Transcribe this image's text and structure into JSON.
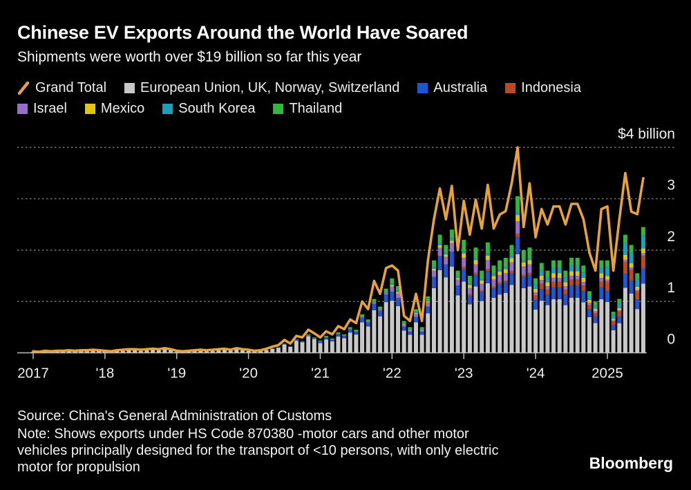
{
  "header": {
    "title": "Chinese EV Exports Around the World Have Soared",
    "subtitle": "Shipments were worth over $19 billion so far this year"
  },
  "legend": {
    "rows": [
      [
        {
          "type": "line",
          "label": "Grand Total",
          "color": "#E8A23B"
        },
        {
          "type": "swatch",
          "label": "European Union, UK, Norway, Switzerland",
          "color": "#C8C8C8"
        },
        {
          "type": "swatch",
          "label": "Australia",
          "color": "#1E57D2"
        },
        {
          "type": "swatch",
          "label": "Indonesia",
          "color": "#BC4A20"
        }
      ],
      [
        {
          "type": "swatch",
          "label": "Israel",
          "color": "#9A6CCB"
        },
        {
          "type": "swatch",
          "label": "Mexico",
          "color": "#E2C50F"
        },
        {
          "type": "swatch",
          "label": "South Korea",
          "color": "#1AA0BA"
        },
        {
          "type": "swatch",
          "label": "Thailand",
          "color": "#2FB83C"
        }
      ]
    ]
  },
  "chart_data": {
    "type": "bar",
    "overlay": "line",
    "title": "Chinese EV Exports Around the World Have Soared",
    "subtitle": "Shipments were worth over $19 billion so far this year",
    "start_month": "2017-01",
    "end_month": "2025-07",
    "months": 103,
    "y_axis": {
      "range": [
        0,
        4
      ],
      "ticks": [
        0,
        1,
        2,
        3
      ],
      "top_tick_value": 4,
      "top_tick_label": "$4 billion",
      "gridlines": [
        1,
        2,
        3,
        4
      ],
      "grid_style": "dotted",
      "labels_side": "right"
    },
    "x_axis": {
      "ticks": [
        {
          "label": "2017",
          "month_index": 0
        },
        {
          "label": "'18",
          "month_index": 12
        },
        {
          "label": "'19",
          "month_index": 24
        },
        {
          "label": "'20",
          "month_index": 36
        },
        {
          "label": "'21",
          "month_index": 48
        },
        {
          "label": "'22",
          "month_index": 60
        },
        {
          "label": "'23",
          "month_index": 72
        },
        {
          "label": "'24",
          "month_index": 84
        },
        {
          "label": "2025",
          "month_index": 96
        }
      ]
    },
    "grand_total_line": {
      "name": "Grand Total",
      "color": "#E8A23B",
      "values": [
        0.03,
        0.02,
        0.04,
        0.03,
        0.04,
        0.04,
        0.05,
        0.04,
        0.05,
        0.05,
        0.06,
        0.05,
        0.04,
        0.03,
        0.05,
        0.06,
        0.07,
        0.07,
        0.06,
        0.07,
        0.08,
        0.07,
        0.09,
        0.07,
        0.04,
        0.03,
        0.04,
        0.05,
        0.06,
        0.05,
        0.06,
        0.07,
        0.08,
        0.06,
        0.09,
        0.07,
        0.06,
        0.04,
        0.05,
        0.08,
        0.12,
        0.15,
        0.25,
        0.18,
        0.33,
        0.3,
        0.45,
        0.38,
        0.3,
        0.42,
        0.36,
        0.52,
        0.46,
        0.65,
        0.58,
        1.0,
        0.85,
        1.4,
        1.15,
        1.65,
        1.7,
        1.6,
        0.72,
        0.62,
        1.15,
        0.62,
        1.8,
        2.6,
        3.2,
        2.6,
        3.25,
        2.0,
        2.96,
        2.3,
        2.98,
        2.42,
        3.27,
        2.42,
        2.69,
        2.76,
        3.3,
        4.0,
        2.45,
        3.3,
        2.25,
        2.8,
        2.5,
        2.85,
        2.85,
        2.5,
        2.9,
        2.9,
        2.6,
        1.95,
        1.6,
        2.8,
        2.85,
        1.6,
        2.6,
        3.5,
        2.75,
        2.7,
        3.4
      ]
    },
    "bars": {
      "stack_order_bottom_to_top": [
        "eu",
        "au",
        "id",
        "il",
        "mx",
        "kr",
        "th"
      ],
      "series_meta": [
        {
          "key": "eu",
          "name": "European Union, UK, Norway, Switzerland",
          "color": "#C8C8C8"
        },
        {
          "key": "au",
          "name": "Australia",
          "color": "#1E57D2"
        },
        {
          "key": "id",
          "name": "Indonesia",
          "color": "#BC4A20"
        },
        {
          "key": "il",
          "name": "Israel",
          "color": "#9A6CCB"
        },
        {
          "key": "mx",
          "name": "Mexico",
          "color": "#E2C50F"
        },
        {
          "key": "kr",
          "name": "South Korea",
          "color": "#1AA0BA"
        },
        {
          "key": "th",
          "name": "Thailand",
          "color": "#2FB83C"
        }
      ],
      "totals": [
        0.02,
        0.01,
        0.02,
        0.02,
        0.03,
        0.03,
        0.03,
        0.03,
        0.04,
        0.04,
        0.05,
        0.04,
        0.03,
        0.02,
        0.03,
        0.04,
        0.05,
        0.05,
        0.04,
        0.05,
        0.06,
        0.05,
        0.07,
        0.05,
        0.02,
        0.02,
        0.03,
        0.03,
        0.04,
        0.04,
        0.04,
        0.05,
        0.06,
        0.05,
        0.07,
        0.05,
        0.04,
        0.03,
        0.04,
        0.06,
        0.09,
        0.11,
        0.18,
        0.13,
        0.26,
        0.23,
        0.36,
        0.3,
        0.24,
        0.33,
        0.28,
        0.4,
        0.36,
        0.5,
        0.45,
        0.75,
        0.65,
        1.05,
        0.9,
        1.25,
        1.45,
        1.3,
        0.62,
        0.5,
        0.85,
        0.5,
        1.1,
        1.8,
        2.3,
        2.1,
        2.4,
        1.6,
        2.2,
        1.5,
        2.05,
        1.6,
        2.15,
        1.7,
        1.8,
        1.85,
        2.1,
        3.05,
        2.0,
        2.05,
        1.45,
        1.75,
        1.6,
        1.8,
        1.8,
        1.6,
        1.85,
        1.85,
        1.7,
        1.2,
        1.0,
        1.8,
        1.8,
        0.8,
        1.05,
        2.3,
        2.1,
        1.55,
        2.45
      ],
      "composition_share_by_year": {
        "2017": {
          "eu": 0.95,
          "au": 0.02,
          "th": 0.03
        },
        "2018": {
          "eu": 0.95,
          "au": 0.02,
          "th": 0.03
        },
        "2019": {
          "eu": 0.94,
          "au": 0.03,
          "th": 0.03
        },
        "2020": {
          "eu": 0.9,
          "au": 0.03,
          "kr": 0.02,
          "th": 0.05
        },
        "2021": {
          "eu": 0.79,
          "au": 0.12,
          "il": 0.03,
          "th": 0.06
        },
        "2022": {
          "eu": 0.7,
          "au": 0.12,
          "il": 0.07,
          "mx": 0.02,
          "kr": 0.02,
          "th": 0.07
        },
        "2023": {
          "eu": 0.63,
          "au": 0.11,
          "id": 0.02,
          "il": 0.08,
          "mx": 0.04,
          "kr": 0.02,
          "th": 0.1
        },
        "2024": {
          "eu": 0.58,
          "au": 0.13,
          "id": 0.06,
          "il": 0.04,
          "mx": 0.05,
          "kr": 0.06,
          "th": 0.08
        },
        "2025": {
          "eu": 0.55,
          "au": 0.12,
          "id": 0.1,
          "il": 0.02,
          "mx": 0.04,
          "kr": 0.1,
          "th": 0.07
        }
      }
    }
  },
  "footer": {
    "source": "Source: China's General Administration of Customs",
    "note": "Note: Shows exports under HS Code 870380 -motor cars and other motor vehicles principally designed for the transport of <10 persons, with only electric motor for propulsion",
    "logo": "Bloomberg"
  }
}
